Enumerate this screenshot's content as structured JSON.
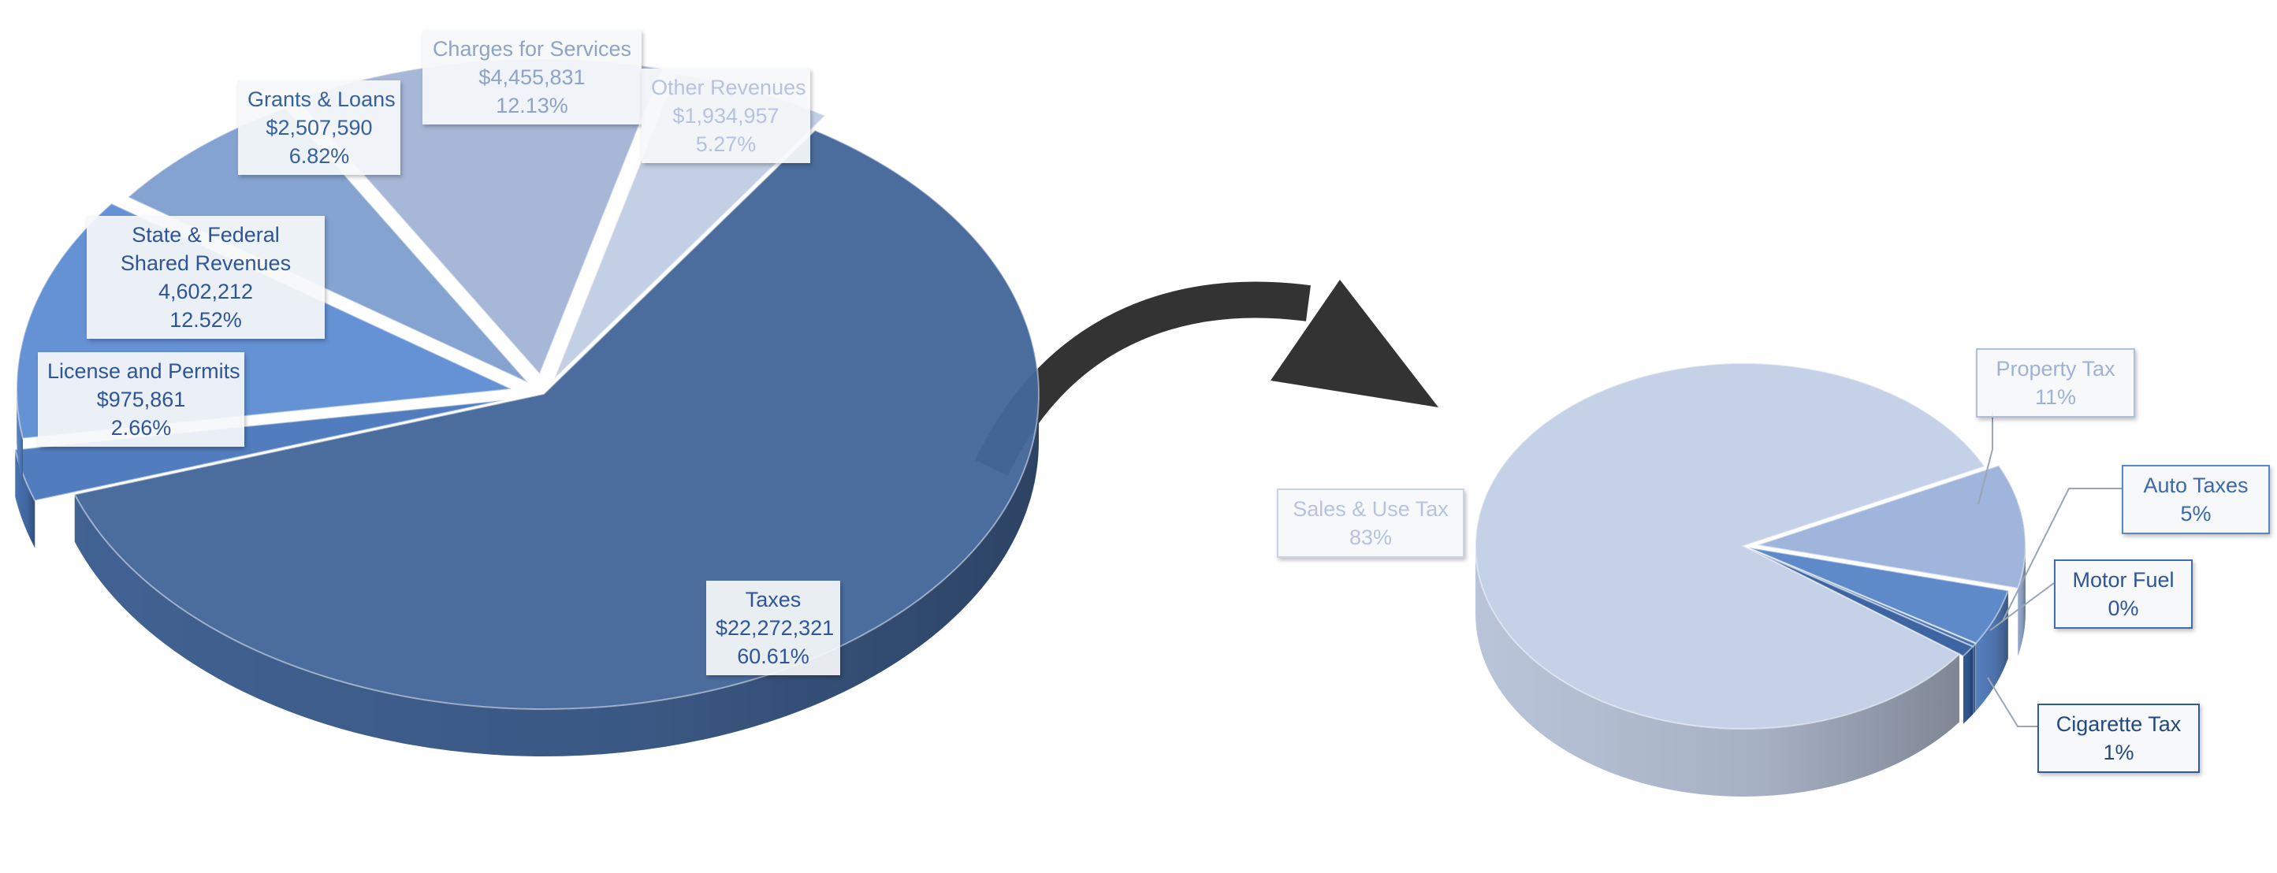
{
  "chart_data": [
    {
      "type": "pie",
      "title": "",
      "slices": [
        {
          "name": "Taxes",
          "amount": "$22,272,321",
          "percent": "60.61%",
          "value": 22272321,
          "color": "#44679a"
        },
        {
          "name": "License and Permits",
          "amount": "$975,861",
          "percent": "2.66%",
          "value": 975861,
          "color": "#4a78bb"
        },
        {
          "name": "State & Federal Shared Revenues",
          "amount": "4,602,212",
          "percent": "12.52%",
          "value": 4602212,
          "color": "#5f8ed3"
        },
        {
          "name": "Grants & Loans",
          "amount": "$2,507,590",
          "percent": "6.82%",
          "value": 2507590,
          "color": "#7f9fcf"
        },
        {
          "name": "Charges for Services",
          "amount": "$4,455,831",
          "percent": "12.13%",
          "value": 4455831,
          "color": "#a3b4d5"
        },
        {
          "name": "Other Revenues",
          "amount": "$1,934,957",
          "percent": "5.27%",
          "value": 1934957,
          "color": "#c0cde3"
        }
      ]
    },
    {
      "type": "pie",
      "title": "",
      "slices": [
        {
          "name": "Sales & Use Tax",
          "percent": "83%",
          "value": 83,
          "color": "#c3cfe5"
        },
        {
          "name": "Property Tax",
          "percent": "11%",
          "value": 11,
          "color": "#9db3da"
        },
        {
          "name": "Auto Taxes",
          "percent": "5%",
          "value": 5,
          "color": "#5a86c8"
        },
        {
          "name": "Motor Fuel",
          "percent": "0%",
          "value": 0.3,
          "color": "#3f6db0"
        },
        {
          "name": "Cigarette Tax",
          "percent": "1%",
          "value": 1,
          "color": "#36609f"
        }
      ]
    }
  ],
  "colors": {
    "arrow": "#333333",
    "labelDark": "#2e5597",
    "labelLight": "#b5c3dd"
  }
}
